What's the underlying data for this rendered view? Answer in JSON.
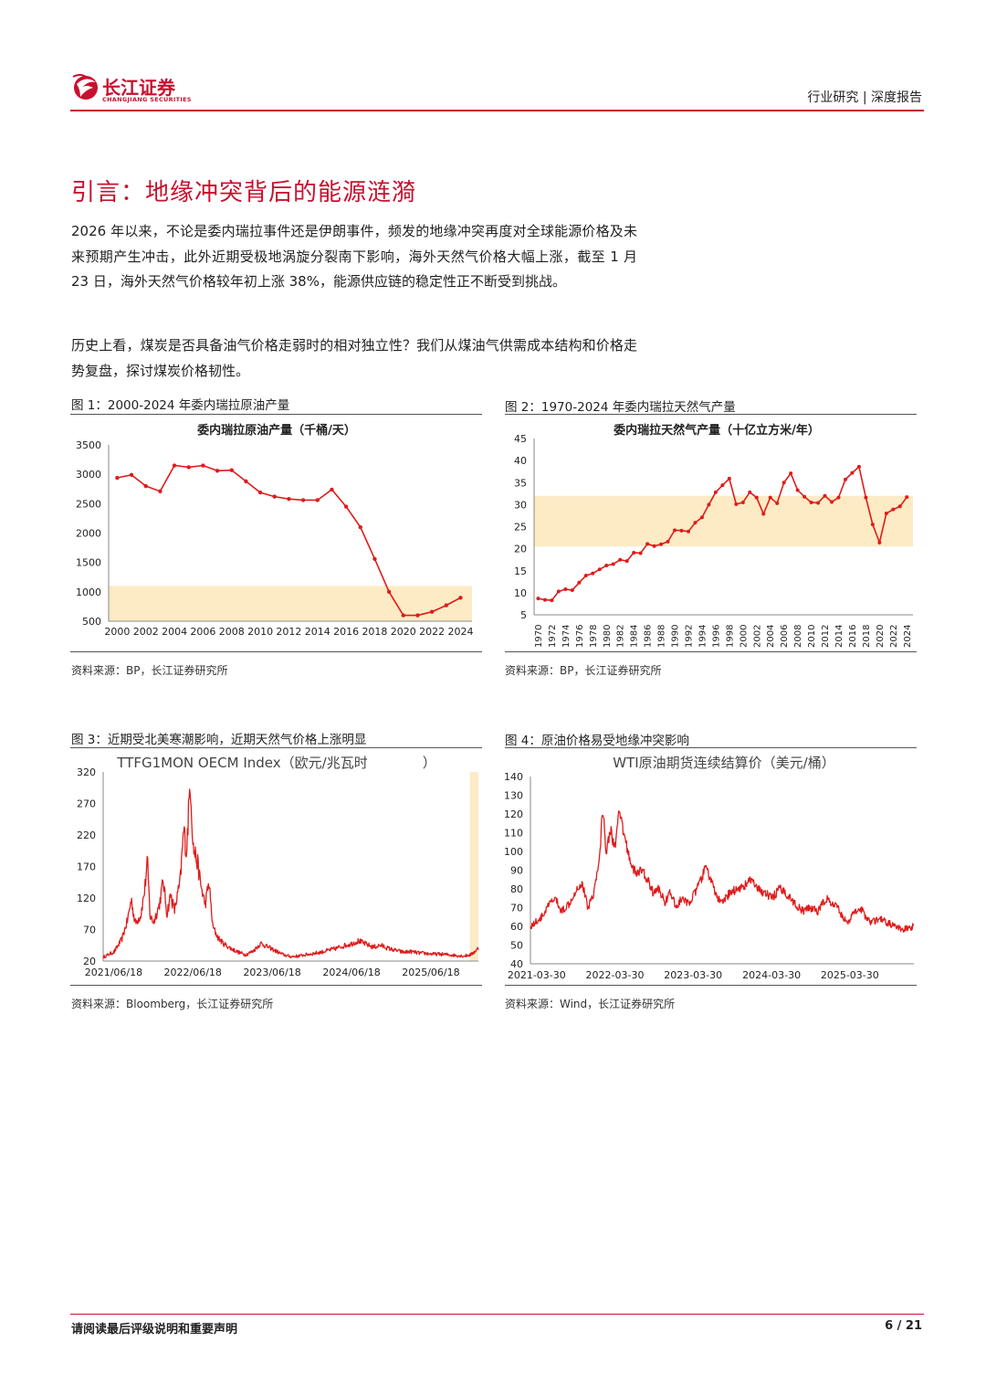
{
  "header": {
    "logo_cn": "长江证券",
    "logo_en": "CHANGJIANG SECURITIES",
    "right": "行业研究 | 深度报告"
  },
  "colors": {
    "brand": "#c8102e",
    "band": "#fcebc5",
    "line": "#e01b1b"
  },
  "section": {
    "title": "引言：地缘冲突背后的能源涟漪",
    "paragraphs": [
      "2026 年以来，不论是委内瑞拉事件还是伊朗事件，频发的地缘冲突再度对全球能源价格及未来预期产生冲击，此外近期受极地涡旋分裂南下影响，海外天然气价格大幅上涨，截至 1 月 23 日，海外天然气价格较年初上涨 38%，能源供应链的稳定性正不断受到挑战。",
      "历史上看，煤炭是否具备油气价格走弱时的相对独立性？我们从煤油气供需成本结构和价格走势复盘，探讨煤炭价格韧性。"
    ]
  },
  "figures": [
    {
      "caption": "图 1：2000-2024 年委内瑞拉原油产量",
      "source": "资料来源：BP，长江证券研究所"
    },
    {
      "caption": "图 2：1970-2024 年委内瑞拉天然气产量",
      "source": "资料来源：BP，长江证券研究所"
    },
    {
      "caption": "图 3：近期受北美寒潮影响，近期天然气价格上涨明显",
      "source": "资料来源：Bloomberg，长江证券研究所"
    },
    {
      "caption": "图 4：原油价格易受地缘冲突影响",
      "source": "资料来源：Wind，长江证券研究所"
    }
  ],
  "chart_data": [
    {
      "type": "line",
      "title": "委内瑞拉原油产量（千桶/天）",
      "x": [
        2000,
        2001,
        2002,
        2003,
        2004,
        2005,
        2006,
        2007,
        2008,
        2009,
        2010,
        2011,
        2012,
        2013,
        2014,
        2015,
        2016,
        2017,
        2018,
        2019,
        2020,
        2021,
        2022,
        2023,
        2024
      ],
      "y": [
        2940,
        2990,
        2800,
        2710,
        3150,
        3120,
        3150,
        3060,
        3070,
        2880,
        2690,
        2620,
        2580,
        2560,
        2560,
        2740,
        2450,
        2100,
        1560,
        1000,
        600,
        600,
        660,
        770,
        900
      ],
      "xticks": [
        "2000",
        "2002",
        "2004",
        "2006",
        "2008",
        "2010",
        "2012",
        "2014",
        "2016",
        "2018",
        "2020",
        "2022",
        "2024"
      ],
      "yticks": [
        500,
        1000,
        1500,
        2000,
        2500,
        3000,
        3500
      ],
      "ylim": [
        500,
        3500
      ],
      "band": [
        500,
        1100
      ],
      "markers": true
    },
    {
      "type": "line",
      "title": "委内瑞拉天然气产量（十亿立方米/年）",
      "x": [
        1970,
        1971,
        1972,
        1973,
        1974,
        1975,
        1976,
        1977,
        1978,
        1979,
        1980,
        1981,
        1982,
        1983,
        1984,
        1985,
        1986,
        1987,
        1988,
        1989,
        1990,
        1991,
        1992,
        1993,
        1994,
        1995,
        1996,
        1997,
        1998,
        1999,
        2000,
        2001,
        2002,
        2003,
        2004,
        2005,
        2006,
        2007,
        2008,
        2009,
        2010,
        2011,
        2012,
        2013,
        2014,
        2015,
        2016,
        2017,
        2018,
        2019,
        2020,
        2021,
        2022,
        2023,
        2024
      ],
      "y": [
        8.7,
        8.4,
        8.3,
        10.3,
        10.8,
        10.6,
        12.3,
        13.9,
        14.4,
        15.3,
        16.2,
        16.5,
        17.5,
        17.2,
        19.1,
        19.0,
        21.1,
        20.6,
        21.0,
        21.6,
        24.2,
        24.1,
        23.9,
        25.9,
        27.1,
        30.0,
        32.8,
        34.4,
        35.9,
        30.1,
        30.5,
        32.8,
        31.6,
        27.9,
        31.6,
        30.3,
        35.0,
        37.1,
        33.3,
        31.8,
        30.5,
        30.4,
        32.0,
        30.6,
        31.6,
        35.7,
        37.2,
        38.6,
        31.6,
        25.5,
        21.4,
        28.0,
        28.9,
        29.6,
        31.7
      ],
      "xticks": [
        "1970",
        "1972",
        "1974",
        "1976",
        "1978",
        "1980",
        "1982",
        "1984",
        "1986",
        "1988",
        "1990",
        "1992",
        "1994",
        "1996",
        "1998",
        "2000",
        "2002",
        "2004",
        "2006",
        "2008",
        "2010",
        "2012",
        "2014",
        "2016",
        "2018",
        "2020",
        "2022",
        "2024"
      ],
      "yticks": [
        5,
        10,
        15,
        20,
        25,
        30,
        35,
        40,
        45
      ],
      "ylim": [
        5,
        45
      ],
      "band": [
        20.5,
        32
      ],
      "markers": true
    },
    {
      "type": "line",
      "title": "TTFG1MON OECM Index（欧元/兆瓦时　　　　）",
      "xticks": [
        "2021/06/18",
        "2022/06/18",
        "2023/06/18",
        "2024/06/18",
        "2025/06/18"
      ],
      "yticks": [
        20,
        70,
        120,
        170,
        220,
        270,
        320
      ],
      "ylim": [
        20,
        320
      ],
      "x_range": [
        "2021/05/01",
        "2026/01/23"
      ],
      "band_x": [
        "2025/12/15",
        "2026/01/23"
      ],
      "keypoints": [
        {
          "t": 0.0,
          "v": 26
        },
        {
          "t": 0.03,
          "v": 35
        },
        {
          "t": 0.05,
          "v": 55
        },
        {
          "t": 0.065,
          "v": 85
        },
        {
          "t": 0.075,
          "v": 118
        },
        {
          "t": 0.085,
          "v": 80
        },
        {
          "t": 0.1,
          "v": 92
        },
        {
          "t": 0.11,
          "v": 130
        },
        {
          "t": 0.118,
          "v": 178
        },
        {
          "t": 0.125,
          "v": 90
        },
        {
          "t": 0.135,
          "v": 82
        },
        {
          "t": 0.15,
          "v": 110
        },
        {
          "t": 0.16,
          "v": 148
        },
        {
          "t": 0.17,
          "v": 95
        },
        {
          "t": 0.18,
          "v": 125
        },
        {
          "t": 0.19,
          "v": 100
        },
        {
          "t": 0.205,
          "v": 145
        },
        {
          "t": 0.215,
          "v": 230
        },
        {
          "t": 0.222,
          "v": 190
        },
        {
          "t": 0.232,
          "v": 310
        },
        {
          "t": 0.24,
          "v": 200
        },
        {
          "t": 0.25,
          "v": 180
        },
        {
          "t": 0.262,
          "v": 135
        },
        {
          "t": 0.272,
          "v": 110
        },
        {
          "t": 0.282,
          "v": 145
        },
        {
          "t": 0.292,
          "v": 75
        },
        {
          "t": 0.305,
          "v": 58
        },
        {
          "t": 0.32,
          "v": 48
        },
        {
          "t": 0.34,
          "v": 40
        },
        {
          "t": 0.36,
          "v": 34
        },
        {
          "t": 0.38,
          "v": 30
        },
        {
          "t": 0.4,
          "v": 36
        },
        {
          "t": 0.42,
          "v": 48
        },
        {
          "t": 0.44,
          "v": 42
        },
        {
          "t": 0.46,
          "v": 36
        },
        {
          "t": 0.48,
          "v": 30
        },
        {
          "t": 0.5,
          "v": 27
        },
        {
          "t": 0.52,
          "v": 28
        },
        {
          "t": 0.54,
          "v": 30
        },
        {
          "t": 0.56,
          "v": 32
        },
        {
          "t": 0.58,
          "v": 34
        },
        {
          "t": 0.6,
          "v": 37
        },
        {
          "t": 0.62,
          "v": 40
        },
        {
          "t": 0.64,
          "v": 44
        },
        {
          "t": 0.66,
          "v": 47
        },
        {
          "t": 0.68,
          "v": 52
        },
        {
          "t": 0.7,
          "v": 47
        },
        {
          "t": 0.72,
          "v": 42
        },
        {
          "t": 0.74,
          "v": 45
        },
        {
          "t": 0.76,
          "v": 40
        },
        {
          "t": 0.78,
          "v": 37
        },
        {
          "t": 0.8,
          "v": 34
        },
        {
          "t": 0.82,
          "v": 35
        },
        {
          "t": 0.84,
          "v": 33
        },
        {
          "t": 0.86,
          "v": 32
        },
        {
          "t": 0.88,
          "v": 31
        },
        {
          "t": 0.9,
          "v": 31
        },
        {
          "t": 0.92,
          "v": 30
        },
        {
          "t": 0.94,
          "v": 29
        },
        {
          "t": 0.96,
          "v": 28
        },
        {
          "t": 0.98,
          "v": 30
        },
        {
          "t": 1.0,
          "v": 40
        }
      ]
    },
    {
      "type": "line",
      "title": "WTI原油期货连续结算价（美元/桶）",
      "xticks": [
        "2021-03-30",
        "2022-03-30",
        "2023-03-30",
        "2024-03-30",
        "2025-03-30"
      ],
      "yticks": [
        40,
        50,
        60,
        70,
        80,
        90,
        100,
        110,
        120,
        130,
        140
      ],
      "ylim": [
        40,
        140
      ],
      "x_range": [
        "2021-03-01",
        "2026-01-23"
      ],
      "keypoints": [
        {
          "t": 0.0,
          "v": 60
        },
        {
          "t": 0.03,
          "v": 65
        },
        {
          "t": 0.05,
          "v": 72
        },
        {
          "t": 0.065,
          "v": 75
        },
        {
          "t": 0.08,
          "v": 68
        },
        {
          "t": 0.1,
          "v": 72
        },
        {
          "t": 0.12,
          "v": 80
        },
        {
          "t": 0.135,
          "v": 83
        },
        {
          "t": 0.15,
          "v": 70
        },
        {
          "t": 0.165,
          "v": 78
        },
        {
          "t": 0.18,
          "v": 95
        },
        {
          "t": 0.188,
          "v": 123
        },
        {
          "t": 0.198,
          "v": 100
        },
        {
          "t": 0.208,
          "v": 112
        },
        {
          "t": 0.22,
          "v": 102
        },
        {
          "t": 0.232,
          "v": 121
        },
        {
          "t": 0.245,
          "v": 108
        },
        {
          "t": 0.26,
          "v": 95
        },
        {
          "t": 0.275,
          "v": 88
        },
        {
          "t": 0.29,
          "v": 90
        },
        {
          "t": 0.305,
          "v": 85
        },
        {
          "t": 0.32,
          "v": 78
        },
        {
          "t": 0.335,
          "v": 80
        },
        {
          "t": 0.35,
          "v": 73
        },
        {
          "t": 0.365,
          "v": 78
        },
        {
          "t": 0.38,
          "v": 70
        },
        {
          "t": 0.395,
          "v": 75
        },
        {
          "t": 0.41,
          "v": 72
        },
        {
          "t": 0.43,
          "v": 78
        },
        {
          "t": 0.445,
          "v": 85
        },
        {
          "t": 0.458,
          "v": 92
        },
        {
          "t": 0.47,
          "v": 85
        },
        {
          "t": 0.485,
          "v": 76
        },
        {
          "t": 0.5,
          "v": 72
        },
        {
          "t": 0.52,
          "v": 78
        },
        {
          "t": 0.54,
          "v": 80
        },
        {
          "t": 0.56,
          "v": 82
        },
        {
          "t": 0.575,
          "v": 85
        },
        {
          "t": 0.59,
          "v": 80
        },
        {
          "t": 0.61,
          "v": 78
        },
        {
          "t": 0.63,
          "v": 75
        },
        {
          "t": 0.65,
          "v": 80
        },
        {
          "t": 0.67,
          "v": 77
        },
        {
          "t": 0.69,
          "v": 72
        },
        {
          "t": 0.71,
          "v": 68
        },
        {
          "t": 0.73,
          "v": 70
        },
        {
          "t": 0.75,
          "v": 68
        },
        {
          "t": 0.77,
          "v": 75
        },
        {
          "t": 0.785,
          "v": 72
        },
        {
          "t": 0.8,
          "v": 70
        },
        {
          "t": 0.815,
          "v": 65
        },
        {
          "t": 0.83,
          "v": 62
        },
        {
          "t": 0.845,
          "v": 68
        },
        {
          "t": 0.86,
          "v": 70
        },
        {
          "t": 0.875,
          "v": 65
        },
        {
          "t": 0.89,
          "v": 62
        },
        {
          "t": 0.91,
          "v": 64
        },
        {
          "t": 0.93,
          "v": 62
        },
        {
          "t": 0.95,
          "v": 60
        },
        {
          "t": 0.97,
          "v": 58
        },
        {
          "t": 0.985,
          "v": 59
        },
        {
          "t": 1.0,
          "v": 60
        }
      ]
    }
  ],
  "footer": {
    "left": "请阅读最后评级说明和重要声明",
    "right": "6 / 21"
  }
}
